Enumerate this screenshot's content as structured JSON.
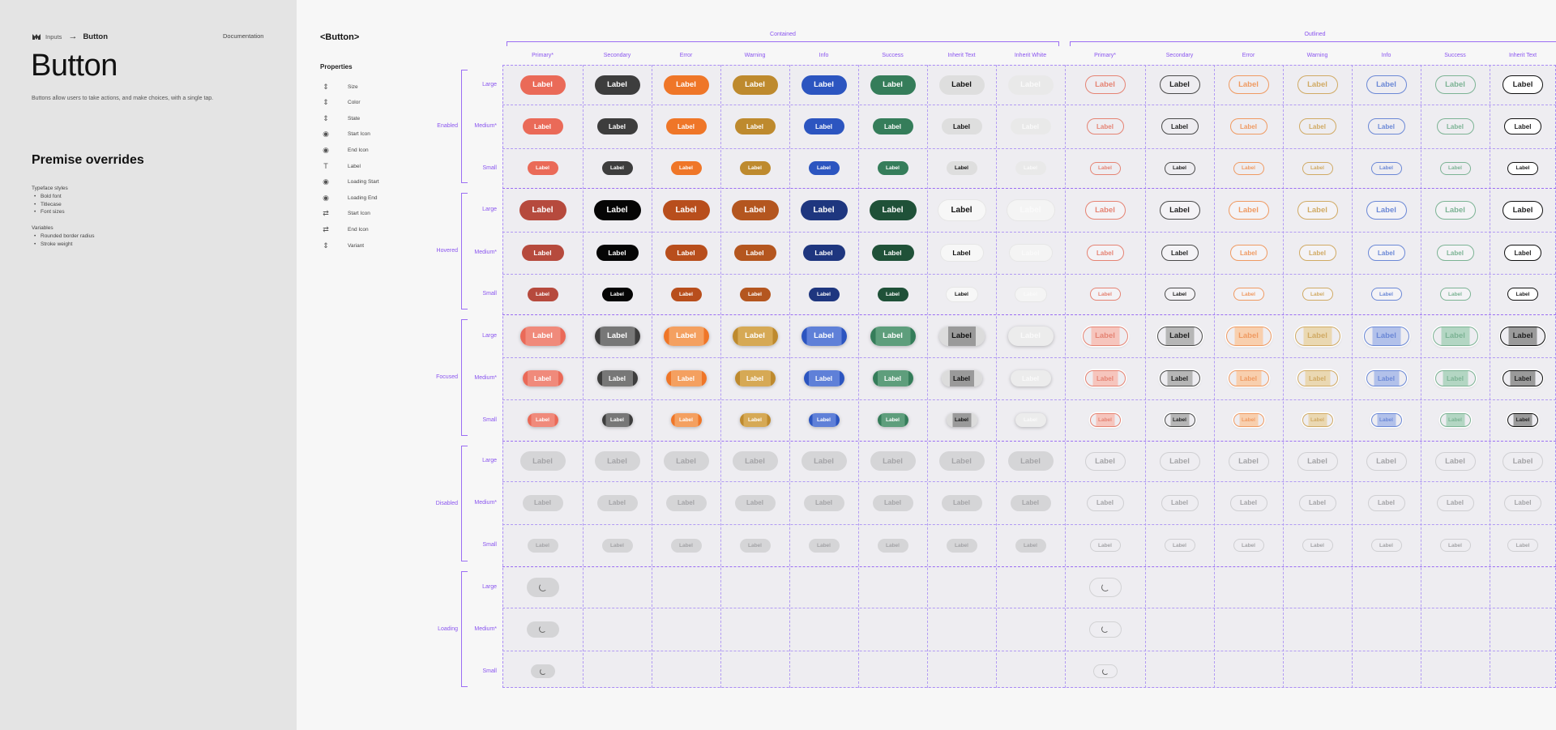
{
  "doc": {
    "breadcrumb": {
      "parent": "Inputs",
      "current": "Button"
    },
    "documentation_link": "Documentation",
    "title": "Button",
    "description": "Buttons allow users to take actions, and make choices, with a single tap.",
    "premise_title": "Premise overrides",
    "typeface_heading": "Typeface styles",
    "typeface_items": [
      "Bold font",
      "Titlecase",
      "Font sizes"
    ],
    "variables_heading": "Variables",
    "variables_items": [
      "Rounded border radius",
      "Stroke weight"
    ]
  },
  "component": "<Button>",
  "properties_heading": "Properties",
  "properties": [
    {
      "label": "Size",
      "icon": "swap-vertical-icon"
    },
    {
      "label": "Color",
      "icon": "swap-vertical-icon"
    },
    {
      "label": "State",
      "icon": "swap-vertical-icon"
    },
    {
      "label": "Start Icon",
      "icon": "eye-icon"
    },
    {
      "label": "End Icon",
      "icon": "eye-icon"
    },
    {
      "label": "Label",
      "icon": "text-icon"
    },
    {
      "label": "Loading Start",
      "icon": "eye-icon"
    },
    {
      "label": "Loading End",
      "icon": "eye-icon"
    },
    {
      "label": "Start Icon",
      "icon": "swap-horizontal-icon"
    },
    {
      "label": "End Icon",
      "icon": "swap-horizontal-icon"
    },
    {
      "label": "Variant",
      "icon": "swap-vertical-icon"
    }
  ],
  "variants": [
    "Contained",
    "Outlined"
  ],
  "contained_columns": [
    "Primary*",
    "Secondary",
    "Error",
    "Warning",
    "Info",
    "Success",
    "Inherit Text",
    "Inherit White"
  ],
  "outlined_columns": [
    "Primary*",
    "Secondary",
    "Error",
    "Warning",
    "Info",
    "Success",
    "Inherit Text"
  ],
  "states": [
    "Enabled",
    "Hovered",
    "Focused",
    "Disabled",
    "Loading"
  ],
  "sizes": [
    "Large",
    "Medium*",
    "Small"
  ],
  "button_label": "Label",
  "colors": {
    "accent": "#8a55ef",
    "enabled": [
      "#ea6a58",
      "#3d3d3d",
      "#ef7628",
      "#be8a2e",
      "#2c55c0",
      "#357d5a",
      "#dedede",
      "#e9e9e9"
    ],
    "hovered": [
      "#b64a3d",
      "#050505",
      "#b84e1c",
      "#b4561f",
      "#1e367f",
      "#1f5138",
      "#f7f7f7",
      "#f4f4f4"
    ],
    "focused": [
      "#f08a7b",
      "#777777",
      "#f4a060",
      "#d6a955",
      "#5f80d8",
      "#5e9e7c",
      "#9a9a9a",
      "#ececec"
    ],
    "outline": [
      "#e58373",
      "#4a4a4a",
      "#ef9a62",
      "#d0aa64",
      "#6b88d6",
      "#7cb394",
      "#111111"
    ],
    "outline_focus_fill": [
      "#f6c5bd",
      "#b6b6b6",
      "#f8cfae",
      "#ead8b2",
      "#b2c1ea",
      "#b3d6c3",
      "#9a9a9a"
    ],
    "disabled_fill": "#d5d5d7",
    "disabled_text": "#a3a3a6"
  }
}
